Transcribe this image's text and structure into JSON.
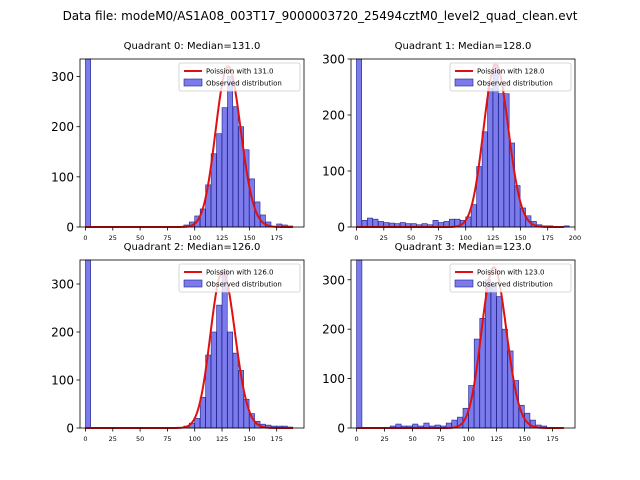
{
  "figure": {
    "title": "Data file: modeM0/AS1A08_003T17_9000003720_25494cztM0_level2_quad_clean.evt"
  },
  "colors": {
    "bar_fill": "#7b7bec",
    "bar_edge": "#1f1f8a",
    "poisson_line": "#e01010"
  },
  "chart_data": [
    {
      "type": "bar",
      "title": "Quadrant 0: Median=131.0",
      "legend": [
        "Poission with 131.0",
        "Observed distribution"
      ],
      "legend_position": "top-right",
      "xlim": [
        -5,
        200
      ],
      "ylim": [
        0,
        335
      ],
      "xticks": [
        0,
        25,
        50,
        75,
        100,
        125,
        150,
        175
      ],
      "yticks": [
        0,
        100,
        200,
        300
      ],
      "bin_width": 4.75,
      "bins": [
        [
          0,
          335
        ],
        [
          90,
          4
        ],
        [
          95,
          10
        ],
        [
          100,
          22
        ],
        [
          105,
          36
        ],
        [
          110,
          84
        ],
        [
          115,
          146
        ],
        [
          120,
          186
        ],
        [
          125,
          238
        ],
        [
          130,
          300
        ],
        [
          135,
          240
        ],
        [
          140,
          200
        ],
        [
          145,
          154
        ],
        [
          150,
          96
        ],
        [
          155,
          50
        ],
        [
          160,
          24
        ],
        [
          165,
          10
        ],
        [
          175,
          6
        ],
        [
          180,
          4
        ],
        [
          185,
          2
        ]
      ],
      "poisson_mean": 131.0,
      "poisson_scale": 320,
      "poisson_range": [
        0,
        190
      ]
    },
    {
      "type": "bar",
      "title": "Quadrant 1: Median=128.0",
      "legend": [
        "Poission with 128.0",
        "Observed distribution"
      ],
      "legend_position": "top-right",
      "xlim": [
        -5,
        200
      ],
      "ylim": [
        0,
        300
      ],
      "xticks": [
        0,
        25,
        50,
        75,
        100,
        125,
        150,
        175,
        200
      ],
      "yticks": [
        0,
        100,
        200,
        300
      ],
      "bin_width": 4.75,
      "bins": [
        [
          0,
          300
        ],
        [
          5,
          12
        ],
        [
          10,
          16
        ],
        [
          15,
          14
        ],
        [
          20,
          10
        ],
        [
          25,
          8
        ],
        [
          30,
          7
        ],
        [
          35,
          6
        ],
        [
          40,
          8
        ],
        [
          45,
          6
        ],
        [
          50,
          6
        ],
        [
          55,
          4
        ],
        [
          60,
          6
        ],
        [
          65,
          4
        ],
        [
          70,
          12
        ],
        [
          75,
          8
        ],
        [
          80,
          10
        ],
        [
          85,
          14
        ],
        [
          90,
          14
        ],
        [
          95,
          12
        ],
        [
          100,
          18
        ],
        [
          105,
          40
        ],
        [
          110,
          108
        ],
        [
          115,
          170
        ],
        [
          120,
          248
        ],
        [
          125,
          290
        ],
        [
          130,
          238
        ],
        [
          135,
          238
        ],
        [
          140,
          150
        ],
        [
          145,
          74
        ],
        [
          150,
          34
        ],
        [
          155,
          20
        ],
        [
          160,
          10
        ],
        [
          165,
          4
        ],
        [
          170,
          2
        ],
        [
          175,
          2
        ],
        [
          190,
          2
        ]
      ],
      "poisson_mean": 128.0,
      "poisson_scale": 290,
      "poisson_range": [
        0,
        190
      ]
    },
    {
      "type": "bar",
      "title": "Quadrant 2: Median=126.0",
      "legend": [
        "Poission with 126.0",
        "Observed distribution"
      ],
      "legend_position": "top-right",
      "xlim": [
        -5,
        200
      ],
      "ylim": [
        0,
        350
      ],
      "xticks": [
        0,
        25,
        50,
        75,
        100,
        125,
        150,
        175
      ],
      "yticks": [
        0,
        100,
        200,
        300
      ],
      "bin_width": 4.75,
      "bins": [
        [
          0,
          350
        ],
        [
          90,
          4
        ],
        [
          95,
          10
        ],
        [
          100,
          20
        ],
        [
          105,
          64
        ],
        [
          110,
          152
        ],
        [
          115,
          200
        ],
        [
          120,
          256
        ],
        [
          125,
          330
        ],
        [
          130,
          200
        ],
        [
          135,
          156
        ],
        [
          140,
          120
        ],
        [
          145,
          60
        ],
        [
          150,
          30
        ],
        [
          155,
          14
        ],
        [
          160,
          8
        ],
        [
          165,
          6
        ],
        [
          170,
          4
        ],
        [
          175,
          4
        ],
        [
          180,
          4
        ],
        [
          185,
          2
        ]
      ],
      "poisson_mean": 126.0,
      "poisson_scale": 325,
      "poisson_range": [
        0,
        190
      ]
    },
    {
      "type": "bar",
      "title": "Quadrant 3: Median=123.0",
      "legend": [
        "Poission with 123.0",
        "Observed distribution"
      ],
      "legend_position": "top-right",
      "xlim": [
        -5,
        195
      ],
      "ylim": [
        0,
        340
      ],
      "xticks": [
        0,
        25,
        50,
        75,
        100,
        125,
        150,
        175
      ],
      "yticks": [
        0,
        100,
        200,
        300
      ],
      "bin_width": 4.75,
      "bins": [
        [
          0,
          340
        ],
        [
          30,
          4
        ],
        [
          35,
          8
        ],
        [
          40,
          4
        ],
        [
          45,
          4
        ],
        [
          50,
          8
        ],
        [
          55,
          4
        ],
        [
          60,
          10
        ],
        [
          65,
          4
        ],
        [
          70,
          6
        ],
        [
          75,
          4
        ],
        [
          80,
          10
        ],
        [
          85,
          16
        ],
        [
          90,
          22
        ],
        [
          95,
          40
        ],
        [
          100,
          86
        ],
        [
          105,
          180
        ],
        [
          110,
          222
        ],
        [
          115,
          300
        ],
        [
          120,
          288
        ],
        [
          125,
          266
        ],
        [
          130,
          200
        ],
        [
          135,
          156
        ],
        [
          140,
          96
        ],
        [
          145,
          46
        ],
        [
          150,
          30
        ],
        [
          155,
          16
        ],
        [
          160,
          6
        ],
        [
          165,
          4
        ]
      ],
      "poisson_mean": 123.0,
      "poisson_scale": 325,
      "poisson_range": [
        0,
        185
      ]
    }
  ]
}
